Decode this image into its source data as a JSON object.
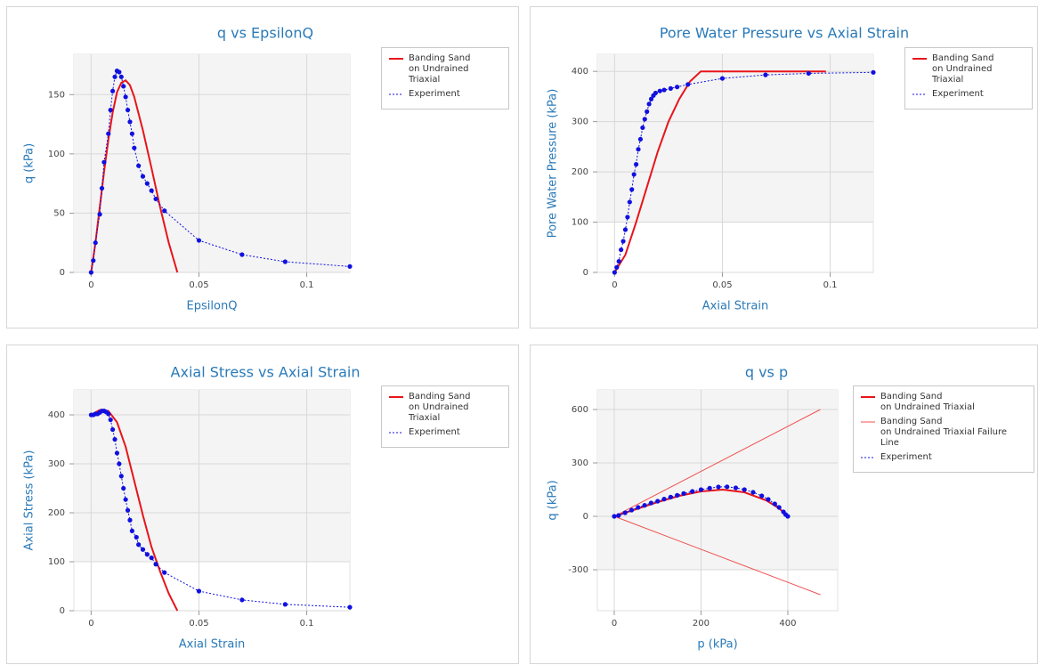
{
  "chart_data": [
    {
      "type": "line",
      "title": "q vs EpsilonQ",
      "x_label": "EpsilonQ",
      "y_label": "q (kPa)",
      "xlim": [
        -0.008,
        0.12
      ],
      "ylim": [
        0,
        184
      ],
      "xticks": [
        0,
        0.05,
        0.1
      ],
      "yticks": [
        0,
        50,
        100,
        150
      ],
      "grid": true,
      "alternating_bands": true,
      "legend": "right",
      "series": [
        {
          "name": "Banding Sand\non Undrained Triaxial",
          "color": "#e8141b",
          "line_style": "solid",
          "line_width": 2,
          "x": [
            0,
            0.002,
            0.004,
            0.006,
            0.008,
            0.01,
            0.012,
            0.014,
            0.016,
            0.018,
            0.02,
            0.024,
            0.028,
            0.032,
            0.036,
            0.04
          ],
          "values": [
            0,
            25,
            55,
            85,
            112,
            135,
            152,
            160,
            162,
            158,
            148,
            120,
            88,
            55,
            25,
            0
          ]
        },
        {
          "name": "Experiment",
          "color": "#1010e0",
          "line_style": "dotted",
          "line_width": 1,
          "marker": "circle",
          "x": [
            0,
            0.001,
            0.002,
            0.004,
            0.005,
            0.006,
            0.008,
            0.009,
            0.01,
            0.011,
            0.012,
            0.013,
            0.014,
            0.015,
            0.016,
            0.017,
            0.018,
            0.019,
            0.02,
            0.022,
            0.024,
            0.026,
            0.028,
            0.03,
            0.034,
            0.05,
            0.07,
            0.09,
            0.12
          ],
          "values": [
            0,
            10,
            25,
            49,
            71,
            93,
            117,
            137,
            153,
            165,
            170,
            169,
            165,
            157,
            148,
            137,
            127,
            117,
            105,
            90,
            81,
            75,
            69,
            62,
            52,
            27,
            15,
            9,
            5
          ]
        }
      ]
    },
    {
      "type": "line",
      "title": "Pore Water Pressure vs Axial Strain",
      "x_label": "Axial Strain",
      "y_label": "Pore Water Pressure (kPa)",
      "xlim": [
        -0.008,
        0.12
      ],
      "ylim": [
        0,
        434
      ],
      "xticks": [
        0,
        0.05,
        0.1
      ],
      "yticks": [
        0,
        100,
        200,
        300,
        400
      ],
      "grid": true,
      "alternating_bands": true,
      "legend": "right",
      "series": [
        {
          "name": "Banding Sand\non Undrained Triaxial",
          "color": "#e8141b",
          "line_style": "solid",
          "line_width": 2,
          "x": [
            0,
            0.005,
            0.01,
            0.015,
            0.02,
            0.025,
            0.03,
            0.035,
            0.04,
            0.06,
            0.098
          ],
          "values": [
            0,
            35,
            100,
            170,
            240,
            300,
            345,
            380,
            400,
            400,
            400
          ]
        },
        {
          "name": "Experiment",
          "color": "#1010e0",
          "line_style": "dotted",
          "line_width": 1,
          "marker": "circle",
          "x": [
            0,
            0.001,
            0.002,
            0.003,
            0.004,
            0.005,
            0.006,
            0.007,
            0.008,
            0.009,
            0.01,
            0.011,
            0.012,
            0.013,
            0.014,
            0.015,
            0.016,
            0.017,
            0.018,
            0.019,
            0.021,
            0.023,
            0.026,
            0.029,
            0.034,
            0.05,
            0.07,
            0.09,
            0.12
          ],
          "values": [
            0,
            10,
            22,
            45,
            62,
            85,
            110,
            140,
            165,
            195,
            215,
            245,
            265,
            288,
            305,
            320,
            335,
            345,
            352,
            357,
            361,
            363,
            366,
            369,
            374,
            386,
            393,
            396,
            398
          ]
        }
      ]
    },
    {
      "type": "line",
      "title": "Axial Stress vs Axial Strain",
      "x_label": "Axial Strain",
      "y_label": "Axial Stress (kPa)",
      "xlim": [
        -0.008,
        0.12
      ],
      "ylim": [
        0,
        451
      ],
      "xticks": [
        0,
        0.05,
        0.1
      ],
      "yticks": [
        0,
        100,
        200,
        300,
        400
      ],
      "grid": true,
      "alternating_bands": true,
      "legend": "right",
      "series": [
        {
          "name": "Banding Sand\non Undrained Triaxial",
          "color": "#e8141b",
          "line_style": "solid",
          "line_width": 2,
          "x": [
            0,
            0.004,
            0.008,
            0.012,
            0.016,
            0.02,
            0.024,
            0.028,
            0.032,
            0.036,
            0.04
          ],
          "values": [
            400,
            410,
            408,
            385,
            335,
            265,
            195,
            130,
            80,
            35,
            0
          ]
        },
        {
          "name": "Experiment",
          "color": "#1010e0",
          "line_style": "dotted",
          "line_width": 1,
          "marker": "circle",
          "x": [
            0,
            0.001,
            0.002,
            0.003,
            0.004,
            0.005,
            0.006,
            0.007,
            0.008,
            0.009,
            0.01,
            0.011,
            0.012,
            0.013,
            0.014,
            0.015,
            0.016,
            0.017,
            0.018,
            0.019,
            0.021,
            0.022,
            0.024,
            0.026,
            0.028,
            0.03,
            0.034,
            0.05,
            0.07,
            0.09,
            0.12
          ],
          "values": [
            400,
            400,
            402,
            402,
            405,
            408,
            408,
            406,
            402,
            390,
            370,
            350,
            322,
            300,
            275,
            250,
            227,
            205,
            185,
            163,
            150,
            135,
            125,
            115,
            108,
            95,
            78,
            40,
            22,
            13,
            7
          ]
        }
      ]
    },
    {
      "type": "line",
      "title": "q vs p",
      "x_label": "p (kPa)",
      "y_label": "q (kPa)",
      "xlim": [
        -39,
        515
      ],
      "ylim": [
        -530,
        710
      ],
      "xticks": [
        0,
        200,
        400
      ],
      "yticks": [
        -300,
        0,
        300,
        600
      ],
      "grid": true,
      "alternating_bands": true,
      "legend": "right",
      "series": [
        {
          "name": "Banding Sand\non Undrained Triaxial",
          "color": "#e8141b",
          "line_style": "solid",
          "line_width": 2,
          "x": [
            0,
            50,
            100,
            150,
            200,
            250,
            300,
            350,
            380,
            400
          ],
          "values": [
            0,
            40,
            80,
            115,
            140,
            150,
            135,
            90,
            45,
            0
          ]
        },
        {
          "name": "Banding Sand\non Undrained Triaxial Failure Line",
          "color": "#f05050",
          "line_style": "solid",
          "line_width": 1,
          "x": [
            475,
            0,
            475
          ],
          "values": [
            600,
            0,
            -440
          ]
        },
        {
          "name": "Experiment",
          "color": "#1010e0",
          "line_style": "dotted",
          "line_width": 1,
          "marker": "circle",
          "x": [
            0,
            10,
            25,
            40,
            55,
            70,
            85,
            100,
            115,
            130,
            145,
            160,
            180,
            200,
            220,
            240,
            260,
            280,
            300,
            320,
            340,
            355,
            370,
            380,
            390,
            395,
            400
          ],
          "values": [
            0,
            5,
            20,
            35,
            50,
            62,
            75,
            85,
            97,
            108,
            118,
            128,
            140,
            150,
            158,
            165,
            166,
            160,
            150,
            135,
            115,
            95,
            70,
            50,
            25,
            10,
            0
          ]
        }
      ]
    }
  ]
}
